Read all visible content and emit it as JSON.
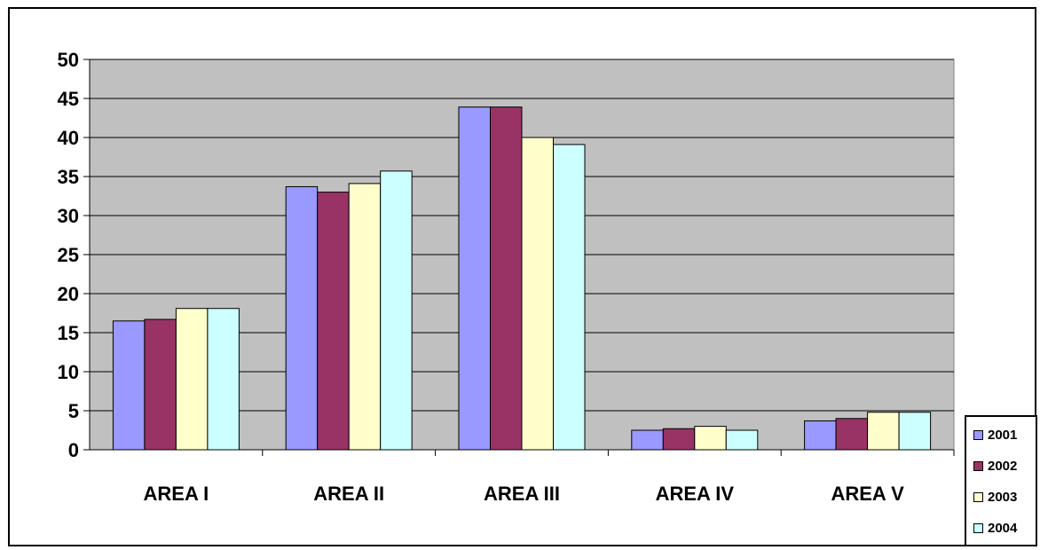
{
  "chart_data": {
    "type": "bar",
    "title": "",
    "xlabel": "",
    "ylabel": "",
    "categories": [
      "AREA I",
      "AREA II",
      "AREA III",
      "AREA IV",
      "AREA V"
    ],
    "series": [
      {
        "name": "2001",
        "color": "#9999FF",
        "values": [
          16.5,
          33.7,
          43.9,
          2.5,
          3.7
        ]
      },
      {
        "name": "2002",
        "color": "#993366",
        "values": [
          16.7,
          33.0,
          43.9,
          2.7,
          4.0
        ]
      },
      {
        "name": "2003",
        "color": "#FFFFCC",
        "values": [
          18.1,
          34.1,
          40.0,
          3.0,
          4.8
        ]
      },
      {
        "name": "2004",
        "color": "#CCFFFF",
        "values": [
          18.1,
          35.7,
          39.1,
          2.5,
          4.8
        ]
      }
    ],
    "ylim": [
      0,
      50
    ],
    "yticks": [
      "0",
      "5",
      "10",
      "15",
      "20",
      "25",
      "30",
      "35",
      "40",
      "45",
      "50"
    ],
    "grid": true,
    "plot_background": "#C0C0C0",
    "legend_position": "bottom-right"
  }
}
